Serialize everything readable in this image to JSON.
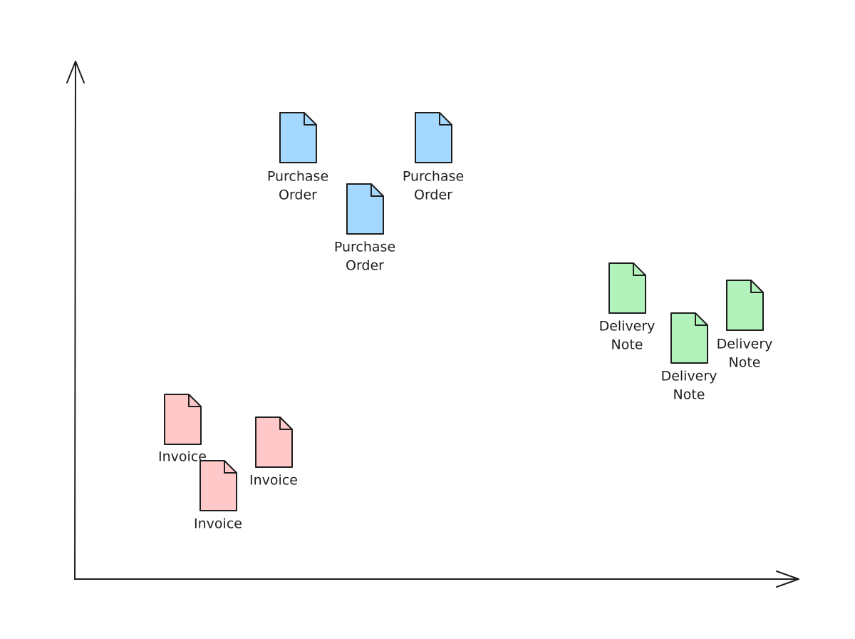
{
  "nodes": [
    {
      "label": [
        "Purchase",
        "Order"
      ]
    },
    {
      "label": [
        "Purchase",
        "Order"
      ]
    },
    {
      "label": [
        "Purchase",
        "Order"
      ]
    },
    {
      "label": [
        "Delivery",
        "Note"
      ]
    },
    {
      "label": [
        "Delivery",
        "Note"
      ]
    },
    {
      "label": [
        "Delivery",
        "Note"
      ]
    },
    {
      "label": [
        "Invoice"
      ]
    },
    {
      "label": [
        "Invoice"
      ]
    },
    {
      "label": [
        "Invoice"
      ]
    }
  ]
}
